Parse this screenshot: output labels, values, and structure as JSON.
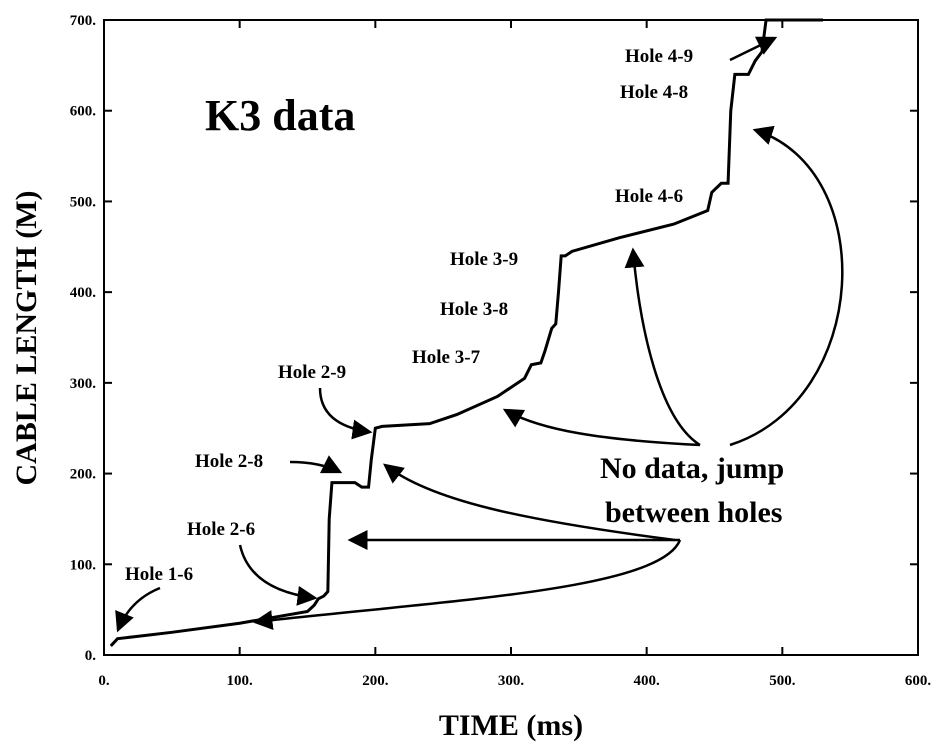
{
  "chart_data": {
    "type": "line",
    "xlabel": "TIME (ms)",
    "ylabel": "CABLE LENGTH (M)",
    "x": [
      5,
      10,
      50,
      100,
      150,
      155,
      158,
      162,
      165,
      166,
      168,
      185,
      190,
      195,
      197,
      200,
      205,
      240,
      260,
      290,
      310,
      315,
      322,
      325,
      330,
      333,
      335,
      337,
      340,
      345,
      380,
      420,
      445,
      448,
      455,
      460,
      462,
      465,
      475,
      480,
      485,
      488,
      500,
      530
    ],
    "values": [
      10,
      18,
      25,
      35,
      48,
      55,
      62,
      65,
      70,
      150,
      190,
      190,
      185,
      185,
      215,
      250,
      252,
      255,
      265,
      285,
      305,
      320,
      322,
      335,
      360,
      365,
      400,
      440,
      440,
      445,
      460,
      475,
      490,
      510,
      520,
      520,
      600,
      640,
      640,
      655,
      665,
      700,
      700,
      700
    ],
    "color": "#000000",
    "xlim": [
      0,
      600
    ],
    "ylim": [
      0,
      700
    ],
    "xticks": [
      {
        "value": 0,
        "label": "0."
      },
      {
        "value": 100,
        "label": "100."
      },
      {
        "value": 200,
        "label": "200."
      },
      {
        "value": 300,
        "label": "300."
      },
      {
        "value": 400,
        "label": "400."
      },
      {
        "value": 500,
        "label": "500."
      },
      {
        "value": 600,
        "label": "600."
      }
    ],
    "yticks": [
      {
        "value": 0,
        "label": "0."
      },
      {
        "value": 100,
        "label": "100."
      },
      {
        "value": 200,
        "label": "200."
      },
      {
        "value": 300,
        "label": "300."
      },
      {
        "value": 400,
        "label": "400."
      },
      {
        "value": 500,
        "label": "500."
      },
      {
        "value": 600,
        "label": "600."
      },
      {
        "value": 700,
        "label": "700."
      }
    ],
    "annotations": [
      "K3 data",
      "Hole 1-6",
      "Hole 2-6",
      "Hole 2-8",
      "Hole 2-9",
      "Hole 3-7",
      "Hole 3-8",
      "Hole 3-9",
      "Hole 4-6",
      "Hole 4-8",
      "Hole 4-9",
      "No data, jump",
      "between holes"
    ]
  }
}
